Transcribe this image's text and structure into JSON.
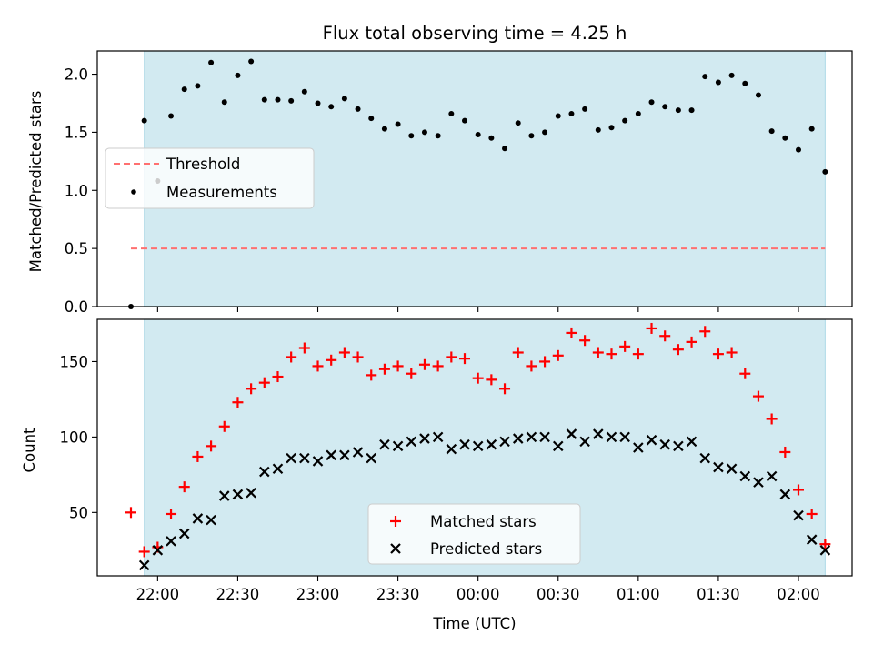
{
  "chart_data": [
    {
      "type": "scatter",
      "title": "Flux total observing time = 4.25 h",
      "xlabel": "",
      "ylabel": "Matched/Predicted stars",
      "ylim": [
        0.0,
        2.2
      ],
      "yticks": [
        "0.0",
        "0.5",
        "1.0",
        "1.5",
        "2.0"
      ],
      "ytick_values": [
        0.0,
        0.5,
        1.0,
        1.5,
        2.0
      ],
      "legend_position": "center-left",
      "shaded_interval": [
        "21:55",
        "02:10"
      ],
      "shade_color": "#add8e6",
      "series": [
        {
          "name": "Threshold",
          "kind": "dashed-line",
          "color": "#ff7070",
          "x": [
            "21:50",
            "02:10"
          ],
          "y": [
            0.5,
            0.5
          ]
        },
        {
          "name": "Measurements",
          "kind": "points",
          "color": "#000000",
          "x": [
            "21:50",
            "21:55",
            "22:00",
            "22:05",
            "22:10",
            "22:15",
            "22:20",
            "22:25",
            "22:30",
            "22:35",
            "22:40",
            "22:45",
            "22:50",
            "22:55",
            "23:00",
            "23:05",
            "23:10",
            "23:15",
            "23:20",
            "23:25",
            "23:30",
            "23:35",
            "23:40",
            "23:45",
            "23:50",
            "23:55",
            "00:00",
            "00:05",
            "00:10",
            "00:15",
            "00:20",
            "00:25",
            "00:30",
            "00:35",
            "00:40",
            "00:45",
            "00:50",
            "00:55",
            "01:00",
            "01:05",
            "01:10",
            "01:15",
            "01:20",
            "01:25",
            "01:30",
            "01:35",
            "01:40",
            "01:45",
            "01:50",
            "01:55",
            "02:00",
            "02:05",
            "02:10"
          ],
          "y": [
            0.0,
            1.6,
            1.08,
            1.64,
            1.87,
            1.9,
            2.1,
            1.76,
            1.99,
            2.11,
            1.78,
            1.78,
            1.77,
            1.85,
            1.75,
            1.72,
            1.79,
            1.7,
            1.62,
            1.53,
            1.57,
            1.47,
            1.5,
            1.47,
            1.66,
            1.6,
            1.48,
            1.45,
            1.36,
            1.58,
            1.47,
            1.5,
            1.64,
            1.66,
            1.7,
            1.52,
            1.54,
            1.6,
            1.66,
            1.76,
            1.72,
            1.69,
            1.69,
            1.98,
            1.93,
            1.99,
            1.92,
            1.82,
            1.51,
            1.45,
            1.35,
            1.53,
            1.16
          ]
        }
      ]
    },
    {
      "type": "scatter",
      "title": "",
      "xlabel": "Time (UTC)",
      "ylabel": "Count",
      "ylim": [
        8,
        178
      ],
      "yticks": [
        "50",
        "100",
        "150"
      ],
      "ytick_values": [
        50,
        100,
        150
      ],
      "xticks": [
        "22:00",
        "22:30",
        "23:00",
        "23:30",
        "00:00",
        "00:30",
        "01:00",
        "01:30",
        "02:00"
      ],
      "legend_position": "lower-center",
      "shaded_interval": [
        "21:55",
        "02:10"
      ],
      "shade_color": "#add8e6",
      "series": [
        {
          "name": "Matched stars",
          "kind": "plus",
          "color": "#ff0000",
          "x": [
            "21:50",
            "21:55",
            "22:00",
            "22:05",
            "22:10",
            "22:15",
            "22:20",
            "22:25",
            "22:30",
            "22:35",
            "22:40",
            "22:45",
            "22:50",
            "22:55",
            "23:00",
            "23:05",
            "23:10",
            "23:15",
            "23:20",
            "23:25",
            "23:30",
            "23:35",
            "23:40",
            "23:45",
            "23:50",
            "23:55",
            "00:00",
            "00:05",
            "00:10",
            "00:15",
            "00:20",
            "00:25",
            "00:30",
            "00:35",
            "00:40",
            "00:45",
            "00:50",
            "00:55",
            "01:00",
            "01:05",
            "01:10",
            "01:15",
            "01:20",
            "01:25",
            "01:30",
            "01:35",
            "01:40",
            "01:45",
            "01:50",
            "01:55",
            "02:00",
            "02:05",
            "02:10"
          ],
          "y": [
            50,
            24,
            27,
            49,
            67,
            87,
            94,
            107,
            123,
            132,
            136,
            140,
            153,
            159,
            147,
            151,
            156,
            153,
            141,
            145,
            147,
            142,
            148,
            147,
            153,
            152,
            139,
            138,
            132,
            156,
            147,
            150,
            154,
            169,
            164,
            156,
            155,
            160,
            155,
            172,
            167,
            158,
            163,
            170,
            155,
            156,
            142,
            127,
            112,
            90,
            65,
            49,
            29
          ]
        },
        {
          "name": "Predicted stars",
          "kind": "x",
          "color": "#000000",
          "x": [
            "21:55",
            "22:00",
            "22:05",
            "22:10",
            "22:15",
            "22:20",
            "22:25",
            "22:30",
            "22:35",
            "22:40",
            "22:45",
            "22:50",
            "22:55",
            "23:00",
            "23:05",
            "23:10",
            "23:15",
            "23:20",
            "23:25",
            "23:30",
            "23:35",
            "23:40",
            "23:45",
            "23:50",
            "23:55",
            "00:00",
            "00:05",
            "00:10",
            "00:15",
            "00:20",
            "00:25",
            "00:30",
            "00:35",
            "00:40",
            "00:45",
            "00:50",
            "00:55",
            "01:00",
            "01:05",
            "01:10",
            "01:15",
            "01:20",
            "01:25",
            "01:30",
            "01:35",
            "01:40",
            "01:45",
            "01:50",
            "01:55",
            "02:00",
            "02:05",
            "02:10"
          ],
          "y": [
            15,
            25,
            31,
            36,
            46,
            45,
            61,
            62,
            63,
            77,
            79,
            86,
            86,
            84,
            88,
            88,
            90,
            86,
            95,
            94,
            97,
            99,
            100,
            92,
            95,
            94,
            95,
            97,
            99,
            100,
            100,
            94,
            102,
            97,
            102,
            100,
            100,
            93,
            98,
            95,
            94,
            97,
            86,
            80,
            79,
            74,
            70,
            74,
            62,
            48,
            32,
            25
          ]
        }
      ]
    }
  ]
}
